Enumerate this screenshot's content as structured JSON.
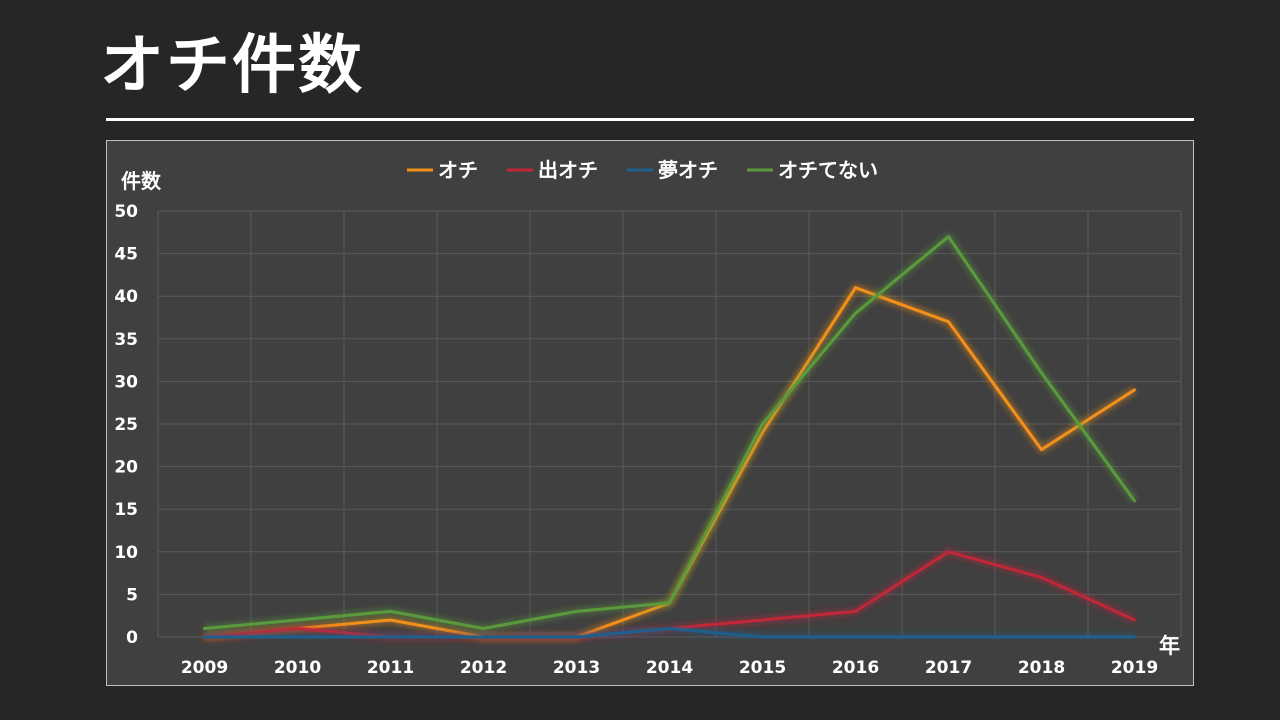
{
  "page_title": "オチ件数",
  "chart_data": {
    "type": "line",
    "title": "",
    "xlabel": "年",
    "ylabel": "件数",
    "ylim": [
      0,
      50
    ],
    "y_ticks": [
      0,
      5,
      10,
      15,
      20,
      25,
      30,
      35,
      40,
      45,
      50
    ],
    "grid": true,
    "legend_position": "top",
    "categories": [
      "2009",
      "2010",
      "2011",
      "2012",
      "2013",
      "2014",
      "2015",
      "2016",
      "2017",
      "2018",
      "2019"
    ],
    "series": [
      {
        "name": "オチ",
        "color": "#f39019",
        "values": [
          0,
          1,
          2,
          0,
          0,
          4,
          24,
          41,
          37,
          22,
          29
        ]
      },
      {
        "name": "出オチ",
        "color": "#c0283a",
        "values": [
          0,
          1,
          0,
          0,
          0,
          1,
          2,
          3,
          10,
          7,
          2
        ]
      },
      {
        "name": "夢オチ",
        "color": "#1f5f8b",
        "values": [
          0,
          0,
          0,
          0,
          0,
          1,
          0,
          0,
          0,
          0,
          0
        ]
      },
      {
        "name": "オチてない",
        "color": "#5a9a3c",
        "values": [
          1,
          2,
          3,
          1,
          3,
          4,
          25,
          38,
          47,
          31,
          16
        ]
      }
    ]
  }
}
